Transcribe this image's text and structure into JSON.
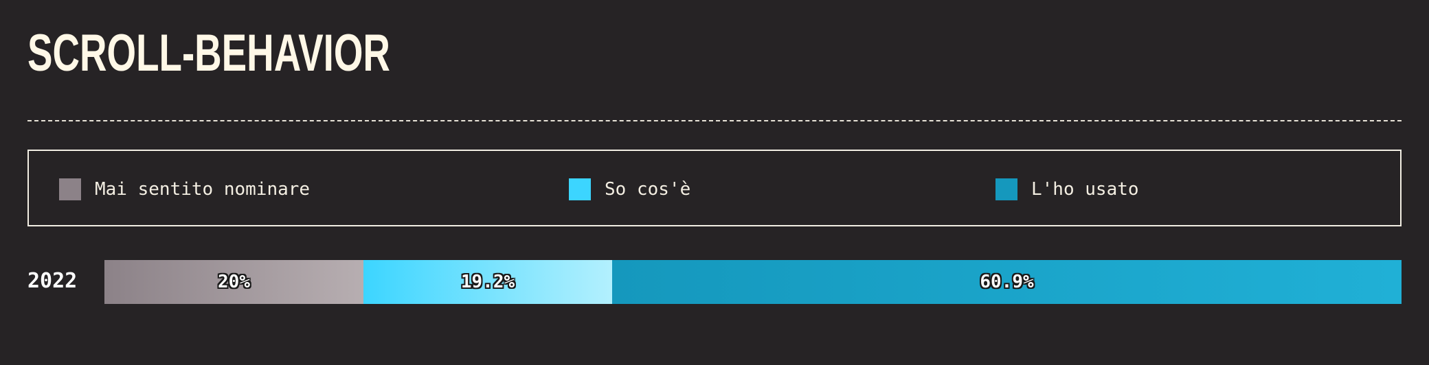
{
  "chart_data": {
    "type": "bar",
    "orientation": "horizontal",
    "stacked": true,
    "title": "scroll-behavior",
    "categories": [
      "2022"
    ],
    "series": [
      {
        "name": "Mai sentito nominare",
        "values": [
          20
        ],
        "label": "20%",
        "color": "#8c8288",
        "color_end": "#b7aeb1"
      },
      {
        "name": "So cos'è",
        "values": [
          19.2
        ],
        "label": "19.2%",
        "color": "#3cd5ff",
        "color_end": "#b3f0fe"
      },
      {
        "name": "L'ho usato",
        "values": [
          60.9
        ],
        "label": "60.9%",
        "color": "#1598bd",
        "color_end": "#20b0d6"
      }
    ],
    "xlim": [
      0,
      100
    ],
    "unit": "%",
    "legend_position": "top",
    "grid": false
  }
}
